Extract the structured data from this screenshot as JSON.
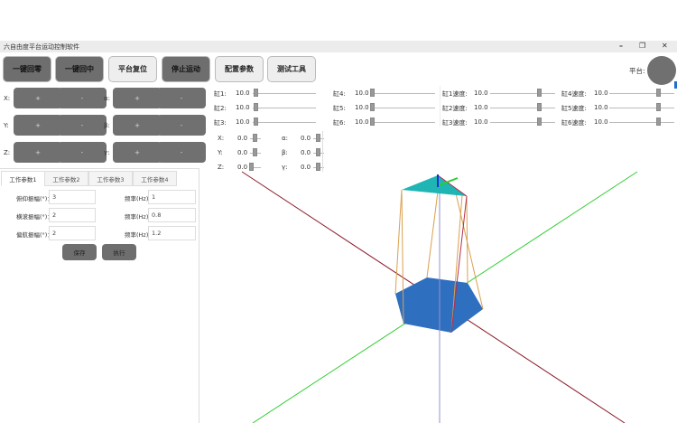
{
  "window": {
    "title": "六自由度平台运动控制软件",
    "minimize": "–",
    "restore": "❐",
    "close": "✕"
  },
  "toolbar": [
    {
      "label": "一键回零",
      "style": "dark"
    },
    {
      "label": "一键回中",
      "style": "dark"
    },
    {
      "label": "平台复位",
      "style": "light"
    },
    {
      "label": "停止运动",
      "style": "dark"
    },
    {
      "label": "配置参数",
      "style": "light"
    },
    {
      "label": "测试工具",
      "style": "light"
    }
  ],
  "platform_label": "平台:",
  "platform_status_color": "#707070",
  "jog": {
    "plus": "+",
    "minus": "-",
    "rows": [
      {
        "left": "X:",
        "right": "α:"
      },
      {
        "left": "Y:",
        "right": "β:"
      },
      {
        "left": "Z:",
        "right": "γ:"
      }
    ]
  },
  "cylinders": [
    {
      "label": "缸1:",
      "value": "10.0"
    },
    {
      "label": "缸2:",
      "value": "10.0"
    },
    {
      "label": "缸3:",
      "value": "10.0"
    },
    {
      "label": "缸4:",
      "value": "10.0"
    },
    {
      "label": "缸5:",
      "value": "10.0"
    },
    {
      "label": "缸6:",
      "value": "10.0"
    }
  ],
  "speeds": [
    {
      "label": "缸1速度:",
      "value": "10.0"
    },
    {
      "label": "缸2速度:",
      "value": "10.0"
    },
    {
      "label": "缸3速度:",
      "value": "10.0"
    },
    {
      "label": "缸4速度:",
      "value": "10.0"
    },
    {
      "label": "缸5速度:",
      "value": "10.0"
    },
    {
      "label": "缸6速度:",
      "value": "10.0"
    }
  ],
  "pose": [
    {
      "label": "X:",
      "value": "0.0"
    },
    {
      "label": "Y:",
      "value": "0.0"
    },
    {
      "label": "Z:",
      "value": "0.0"
    },
    {
      "label": "α:",
      "value": "0.0"
    },
    {
      "label": "β:",
      "value": "0.0"
    },
    {
      "label": "γ:",
      "value": "0.0"
    }
  ],
  "tabs": [
    {
      "label": "工作参数1",
      "active": true
    },
    {
      "label": "工作参数2"
    },
    {
      "label": "工作参数3"
    },
    {
      "label": "工作参数4"
    }
  ],
  "form": [
    {
      "amp_label": "俯仰振幅(°)：",
      "amp": "3",
      "freq_label": "频率(Hz)",
      "freq": "1"
    },
    {
      "amp_label": "横滚振幅(°)：",
      "amp": "2",
      "freq_label": "频率(Hz)",
      "freq": "0.8"
    },
    {
      "amp_label": "偏航振幅(°)：",
      "amp": "2",
      "freq_label": "频率(Hz)",
      "freq": "1.2"
    }
  ],
  "save": "保存",
  "execute": "执行"
}
